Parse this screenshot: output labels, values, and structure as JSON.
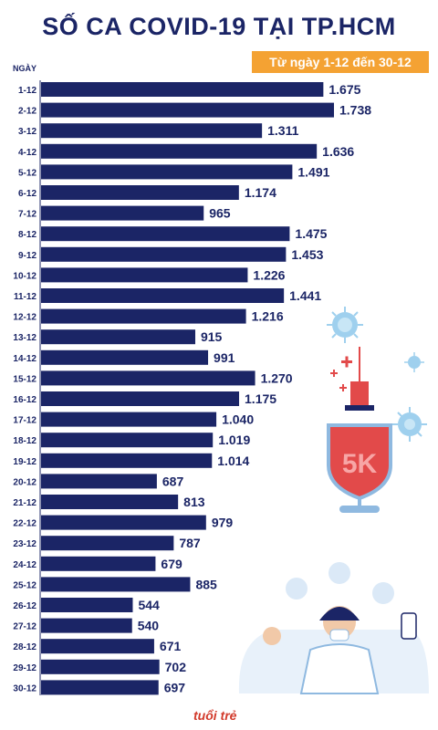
{
  "chart_data": {
    "type": "bar",
    "orientation": "horizontal",
    "title": "SỐ CA COVID-19 TẠI TP.HCM",
    "subtitle": "Từ ngày 1-12 đến 30-12",
    "ylabel": "NGÀY",
    "categories": [
      "1-12",
      "2-12",
      "3-12",
      "4-12",
      "5-12",
      "6-12",
      "7-12",
      "8-12",
      "9-12",
      "10-12",
      "11-12",
      "12-12",
      "13-12",
      "14-12",
      "15-12",
      "16-12",
      "17-12",
      "18-12",
      "19-12",
      "20-12",
      "21-12",
      "22-12",
      "23-12",
      "24-12",
      "25-12",
      "26-12",
      "27-12",
      "28-12",
      "29-12",
      "30-12"
    ],
    "values": [
      1675,
      1738,
      1311,
      1636,
      1491,
      1174,
      965,
      1475,
      1453,
      1226,
      1441,
      1216,
      915,
      991,
      1270,
      1175,
      1040,
      1019,
      1014,
      687,
      813,
      979,
      787,
      679,
      885,
      544,
      540,
      671,
      702,
      697
    ],
    "value_labels": [
      "1.675",
      "1.738",
      "1.311",
      "1.636",
      "1.491",
      "1.174",
      "965",
      "1.475",
      "1.453",
      "1.226",
      "1.441",
      "1.216",
      "915",
      "991",
      "1.270",
      "1.175",
      "1.040",
      "1.019",
      "1.014",
      "687",
      "813",
      "979",
      "787",
      "679",
      "885",
      "544",
      "540",
      "671",
      "702",
      "697"
    ],
    "xlim": [
      0,
      1738
    ],
    "bar_color": "#1b2566",
    "accent_color": "#f4a233"
  },
  "decor": {
    "virus_icon": "virus-icon",
    "syringe_icon": "syringe-icon",
    "shield_text": "5K",
    "logo_text": "tuổi trẻ"
  }
}
